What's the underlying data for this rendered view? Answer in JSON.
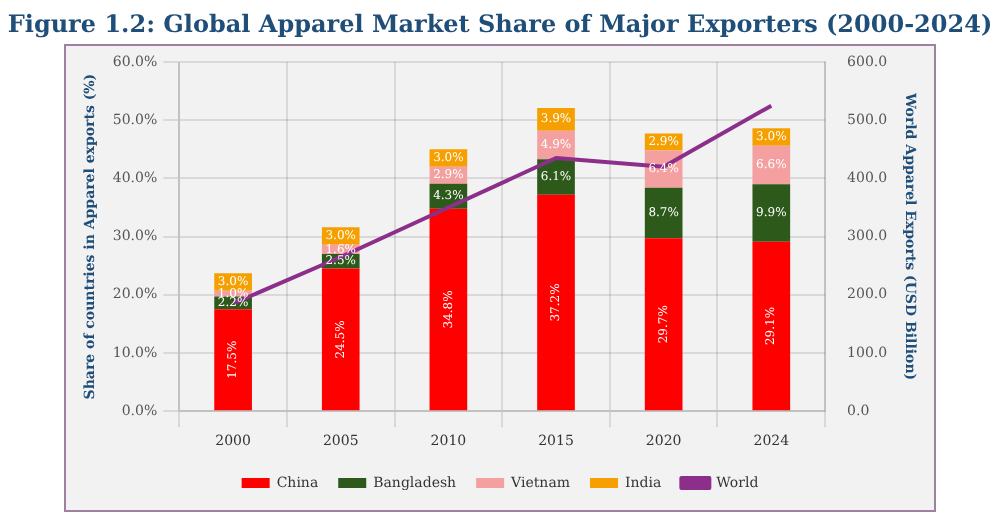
{
  "chart_data": {
    "type": "bar",
    "title": "Figure 1.2: Global Apparel Market Share of Major Exporters (2000-2024)",
    "ylabel": "Share of countries in Apparel exports (%)",
    "y2label": "World Apparel Exports (USD Billion)",
    "categories": [
      "2000",
      "2005",
      "2010",
      "2015",
      "2020",
      "2024"
    ],
    "stacked": true,
    "grid": true,
    "legend": "bottom",
    "ylim": [
      0,
      60
    ],
    "yticks": [
      {
        "value": 0,
        "label": "0.0%"
      },
      {
        "value": 10,
        "label": "10.0%"
      },
      {
        "value": 20,
        "label": "20.0%"
      },
      {
        "value": 30,
        "label": "30.0%"
      },
      {
        "value": 40,
        "label": "40.0%"
      },
      {
        "value": 50,
        "label": "50.0%"
      },
      {
        "value": 60,
        "label": "60.0%"
      }
    ],
    "y2lim": [
      0,
      600
    ],
    "y2ticks": [
      {
        "value": 0,
        "label": "0.0"
      },
      {
        "value": 100,
        "label": "100.0"
      },
      {
        "value": 200,
        "label": "200.0"
      },
      {
        "value": 300,
        "label": "300.0"
      },
      {
        "value": 400,
        "label": "400.0"
      },
      {
        "value": 500,
        "label": "500.0"
      },
      {
        "value": 600,
        "label": "600.0"
      }
    ],
    "series": [
      {
        "name": "China",
        "color": "#ff0000",
        "values": [
          17.5,
          24.5,
          34.8,
          37.2,
          29.7,
          29.1
        ],
        "value_labels": [
          "17.5%",
          "24.5%",
          "34.8%",
          "37.2%",
          "29.7%",
          "29.1%"
        ]
      },
      {
        "name": "Bangladesh",
        "color": "#2d5a1b",
        "values": [
          2.2,
          2.5,
          4.3,
          6.1,
          8.7,
          9.9
        ],
        "value_labels": [
          "2.2%",
          "2.5%",
          "4.3%",
          "6.1%",
          "8.7%",
          "9.9%"
        ]
      },
      {
        "name": "Vietnam",
        "color": "#f4a0a0",
        "values": [
          1.0,
          1.6,
          2.9,
          4.9,
          6.4,
          6.6
        ],
        "value_labels": [
          "1.0%",
          "1.6%",
          "2.9%",
          "4.9%",
          "6.4%",
          "6.6%"
        ]
      },
      {
        "name": "India",
        "color": "#f5a000",
        "values": [
          3.0,
          3.0,
          3.0,
          3.9,
          2.9,
          3.0
        ],
        "value_labels": [
          "3.0%",
          "3.0%",
          "3.0%",
          "3.9%",
          "2.9%",
          "3.0%"
        ]
      },
      {
        "name": "World",
        "type": "line",
        "axis": "y2",
        "color": "#8b2f8b",
        "marker": "none",
        "values": [
          185,
          265,
          350,
          435,
          420,
          525
        ]
      }
    ]
  }
}
